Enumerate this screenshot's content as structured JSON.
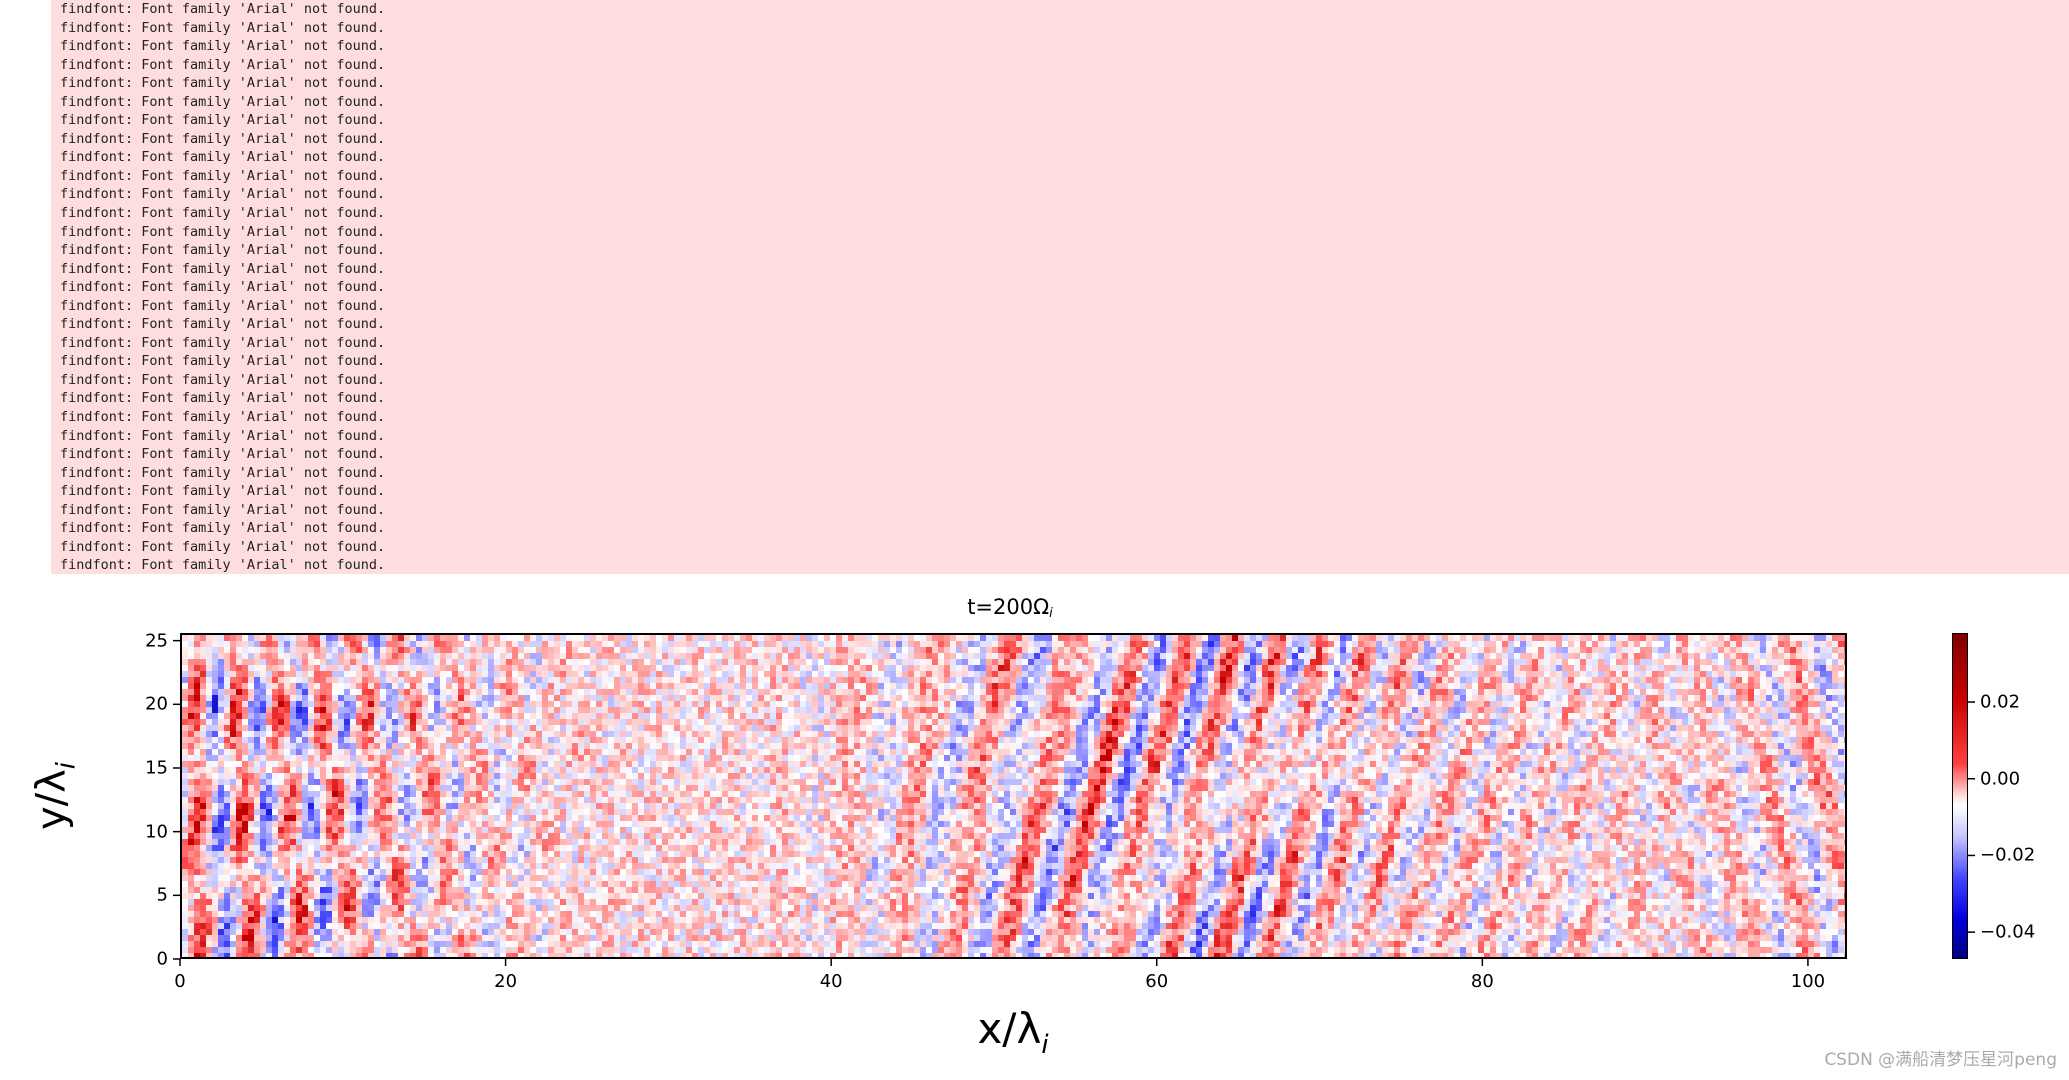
{
  "console": {
    "message": "findfont: Font family 'Arial' not found.",
    "line_count": 31
  },
  "plot": {
    "title_main": "t=200Ω",
    "title_sub": "i",
    "ylabel_main": "y/λ",
    "ylabel_sub": "i",
    "xlabel_main": "x/λ",
    "xlabel_sub": "i",
    "colormap": "seismic",
    "x_ticks": [
      "0",
      "20",
      "40",
      "60",
      "80",
      "100"
    ],
    "y_ticks": [
      "0",
      "5",
      "10",
      "15",
      "20",
      "25"
    ],
    "colorbar_ticks": [
      "0.02",
      "0.00",
      "−0.02",
      "−0.04"
    ]
  },
  "chart_data": {
    "type": "heatmap",
    "title": "t=200Ω_i",
    "xlabel": "x/λ_i",
    "ylabel": "y/λ_i",
    "xlim": [
      0,
      102.4
    ],
    "ylim": [
      0,
      25.6
    ],
    "x_ticks": [
      0,
      20,
      40,
      60,
      80,
      100
    ],
    "y_ticks": [
      0,
      5,
      10,
      15,
      20,
      25
    ],
    "colorbar": {
      "min": -0.047,
      "max": 0.038,
      "ticks": [
        0.02,
        0.0,
        -0.02,
        -0.04
      ],
      "colormap": "seismic"
    }
  },
  "watermark": "CSDN @满船清梦压星河peng"
}
